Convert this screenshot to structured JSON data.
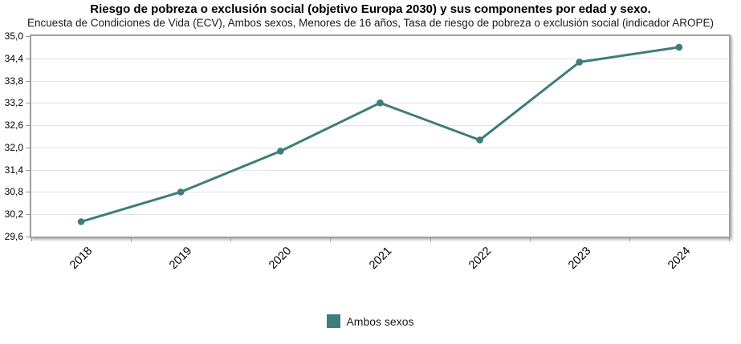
{
  "header": {
    "title": "Riesgo de pobreza o exclusión social (objetivo Europa 2030) y sus componentes por edad y sexo.",
    "subtitle": "Encuesta de Condiciones de Vida (ECV), Ambos sexos, Menores de 16 años, Tasa de riesgo de pobreza o exclusión social (indicador AROPE)"
  },
  "legend": {
    "items": [
      {
        "label": "Ambos sexos",
        "color": "#3e7d79"
      }
    ]
  },
  "colors": {
    "series": "#3e7d79",
    "gridline": "#e4e4e4",
    "plot_border": "#a0a0a0",
    "text": "#000000"
  },
  "chart_data": {
    "type": "line",
    "title": "Riesgo de pobreza o exclusión social (objetivo Europa 2030) y sus componentes por edad y sexo.",
    "subtitle": "Encuesta de Condiciones de Vida (ECV), Ambos sexos, Menores de 16 años, Tasa de riesgo de pobreza o exclusión social (indicador AROPE)",
    "categories": [
      "2018",
      "2019",
      "2020",
      "2021",
      "2022",
      "2023",
      "2024"
    ],
    "series": [
      {
        "name": "Ambos sexos",
        "color": "#3e7d79",
        "values": [
          30.0,
          30.8,
          31.9,
          33.2,
          32.2,
          34.3,
          34.7
        ]
      }
    ],
    "xlabel": "",
    "ylabel": "",
    "ylim": [
      29.6,
      35.0
    ],
    "ytick_step": 0.6,
    "ytick_labels": [
      "35,0",
      "34,4",
      "33,8",
      "33,2",
      "32,6",
      "32,0",
      "31,4",
      "30,8",
      "30,2",
      "29,6"
    ],
    "grid": true,
    "legend_position": "bottom-center",
    "decimal_separator": ","
  }
}
